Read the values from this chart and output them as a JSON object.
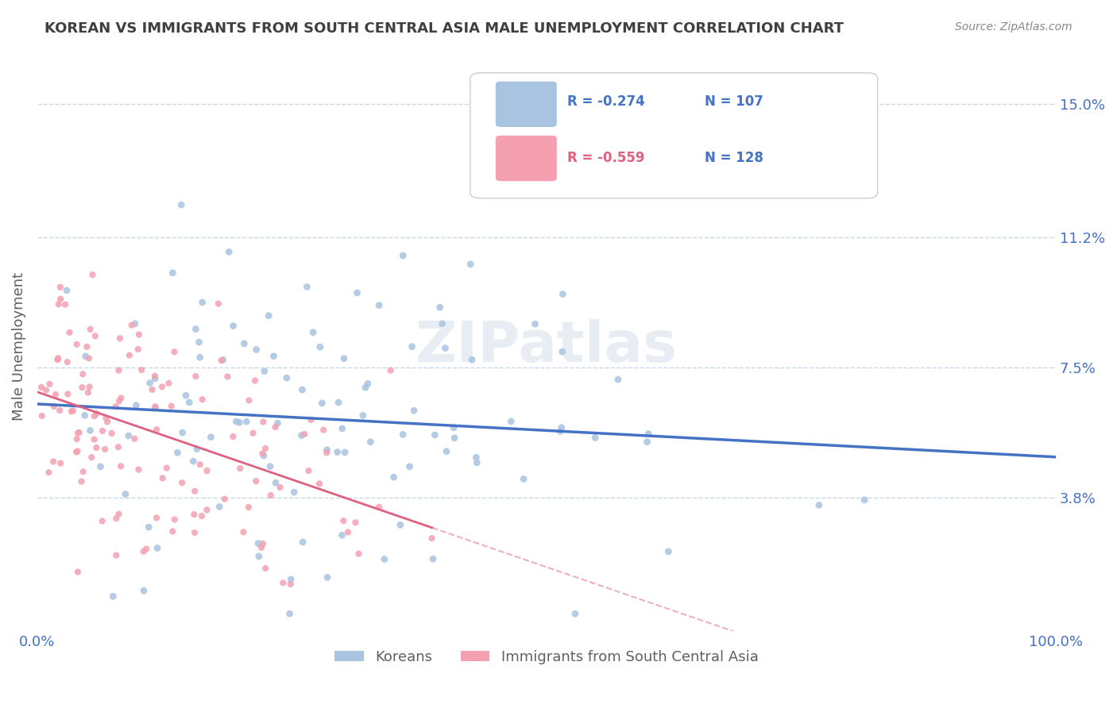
{
  "title": "KOREAN VS IMMIGRANTS FROM SOUTH CENTRAL ASIA MALE UNEMPLOYMENT CORRELATION CHART",
  "source": "Source: ZipAtlas.com",
  "xlabel": "",
  "ylabel": "Male Unemployment",
  "xlim": [
    0.0,
    1.0
  ],
  "ylim": [
    0.0,
    0.162
  ],
  "yticks": [
    0.038,
    0.075,
    0.112,
    0.15
  ],
  "ytick_labels": [
    "3.8%",
    "7.5%",
    "11.2%",
    "15.0%"
  ],
  "xticks": [
    0.0,
    1.0
  ],
  "xtick_labels": [
    "0.0%",
    "100.0%"
  ],
  "series1_name": "Koreans",
  "series1_color": "#a8c4e0",
  "series1_line_color": "#4472c4",
  "series1_R": -0.274,
  "series1_N": 107,
  "series2_name": "Immigrants from South Central Asia",
  "series2_color": "#f4a0b0",
  "series2_line_color": "#e06080",
  "series2_R": -0.559,
  "series2_N": 128,
  "legend_R1": "R = -0.274",
  "legend_N1": "N = 107",
  "legend_R2": "R = -0.559",
  "legend_N2": "N = 128",
  "watermark": "ZIPatlas",
  "background_color": "#ffffff",
  "grid_color": "#c8d8e8",
  "title_color": "#404040",
  "axis_color": "#4472c4",
  "tick_color": "#4472c4",
  "seed1": 42,
  "seed2": 99
}
